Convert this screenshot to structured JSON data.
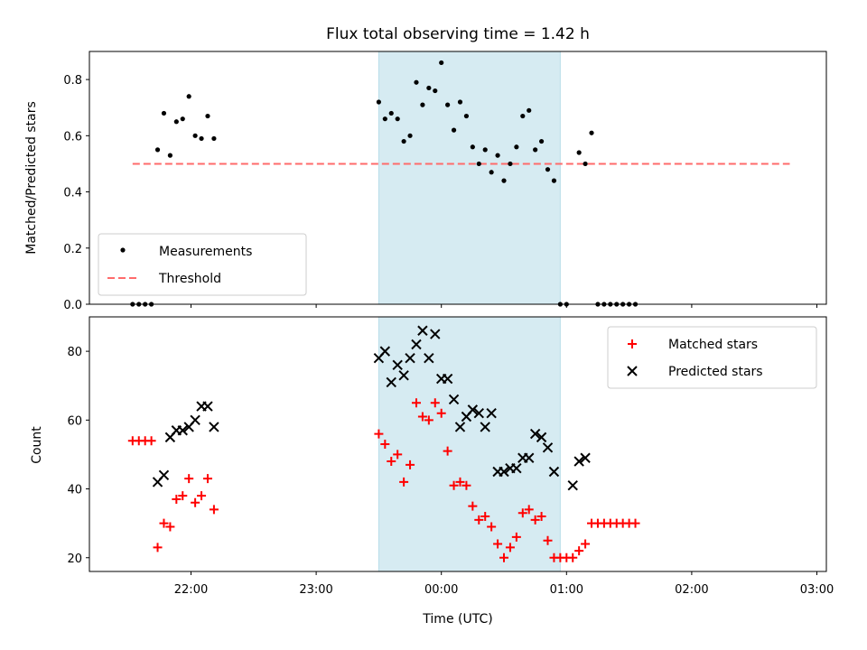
{
  "chart_data": [
    {
      "type": "scatter",
      "panel": "top",
      "title": "Flux total observing time = 1.42 h",
      "ylabel": "Matched/Predicted stars",
      "xlabel": "",
      "x_axis": {
        "type": "time",
        "ticks": [
          "22:00",
          "23:00",
          "00:00",
          "01:00",
          "02:00",
          "03:00"
        ],
        "tick_labels_visible": false
      },
      "ylim": [
        0,
        0.9
      ],
      "yticks": [
        0.0,
        0.2,
        0.4,
        0.6,
        0.8
      ],
      "ytick_labels": [
        "0.0",
        "0.2",
        "0.4",
        "0.6",
        "0.8"
      ],
      "shaded_span": {
        "from": "23:30",
        "to": "00:57",
        "color": "#add8e6"
      },
      "threshold": {
        "value": 0.5,
        "from": "21:32",
        "to": "02:47",
        "color": "#ff6b6b",
        "style": "dashed"
      },
      "legend": {
        "position": "lower left",
        "entries": [
          "Measurements",
          "Threshold"
        ]
      },
      "series": [
        {
          "name": "Measurements",
          "marker": "dot",
          "color": "#000000",
          "points": [
            [
              "21:32",
              0.0
            ],
            [
              "21:35",
              0.0
            ],
            [
              "21:38",
              0.0
            ],
            [
              "21:41",
              0.0
            ],
            [
              "21:44",
              0.55
            ],
            [
              "21:47",
              0.68
            ],
            [
              "21:50",
              0.53
            ],
            [
              "21:53",
              0.65
            ],
            [
              "21:56",
              0.66
            ],
            [
              "21:59",
              0.74
            ],
            [
              "22:02",
              0.6
            ],
            [
              "22:05",
              0.59
            ],
            [
              "22:08",
              0.67
            ],
            [
              "22:11",
              0.59
            ],
            [
              "23:30",
              0.72
            ],
            [
              "23:33",
              0.66
            ],
            [
              "23:36",
              0.68
            ],
            [
              "23:39",
              0.66
            ],
            [
              "23:42",
              0.58
            ],
            [
              "23:45",
              0.6
            ],
            [
              "23:48",
              0.79
            ],
            [
              "23:51",
              0.71
            ],
            [
              "23:54",
              0.77
            ],
            [
              "23:57",
              0.76
            ],
            [
              "00:00",
              0.86
            ],
            [
              "00:03",
              0.71
            ],
            [
              "00:06",
              0.62
            ],
            [
              "00:09",
              0.72
            ],
            [
              "00:12",
              0.67
            ],
            [
              "00:15",
              0.56
            ],
            [
              "00:18",
              0.5
            ],
            [
              "00:21",
              0.55
            ],
            [
              "00:24",
              0.47
            ],
            [
              "00:27",
              0.53
            ],
            [
              "00:30",
              0.44
            ],
            [
              "00:33",
              0.5
            ],
            [
              "00:36",
              0.56
            ],
            [
              "00:39",
              0.67
            ],
            [
              "00:42",
              0.69
            ],
            [
              "00:45",
              0.55
            ],
            [
              "00:48",
              0.58
            ],
            [
              "00:51",
              0.48
            ],
            [
              "00:54",
              0.44
            ],
            [
              "00:57",
              0.0
            ],
            [
              "01:00",
              0.0
            ],
            [
              "01:06",
              0.54
            ],
            [
              "01:09",
              0.5
            ],
            [
              "01:12",
              0.61
            ],
            [
              "01:15",
              0.0
            ],
            [
              "01:18",
              0.0
            ],
            [
              "01:21",
              0.0
            ],
            [
              "01:24",
              0.0
            ],
            [
              "01:27",
              0.0
            ],
            [
              "01:30",
              0.0
            ],
            [
              "01:33",
              0.0
            ]
          ]
        }
      ]
    },
    {
      "type": "scatter",
      "panel": "bottom",
      "title": "",
      "ylabel": "Count",
      "xlabel": "Time (UTC)",
      "x_axis": {
        "type": "time",
        "ticks": [
          "22:00",
          "23:00",
          "00:00",
          "01:00",
          "02:00",
          "03:00"
        ],
        "tick_labels_visible": true
      },
      "ylim": [
        16,
        90
      ],
      "yticks": [
        20,
        40,
        60,
        80
      ],
      "ytick_labels": [
        "20",
        "40",
        "60",
        "80"
      ],
      "shaded_span": {
        "from": "23:30",
        "to": "00:57",
        "color": "#add8e6"
      },
      "legend": {
        "position": "upper right",
        "entries": [
          "Matched stars",
          "Predicted stars"
        ]
      },
      "series": [
        {
          "name": "Matched stars",
          "marker": "plus",
          "color": "#ff0000",
          "points": [
            [
              "21:32",
              54
            ],
            [
              "21:35",
              54
            ],
            [
              "21:38",
              54
            ],
            [
              "21:41",
              54
            ],
            [
              "21:44",
              23
            ],
            [
              "21:47",
              30
            ],
            [
              "21:50",
              29
            ],
            [
              "21:53",
              37
            ],
            [
              "21:56",
              38
            ],
            [
              "21:59",
              43
            ],
            [
              "22:02",
              36
            ],
            [
              "22:05",
              38
            ],
            [
              "22:08",
              43
            ],
            [
              "22:11",
              34
            ],
            [
              "23:30",
              56
            ],
            [
              "23:33",
              53
            ],
            [
              "23:36",
              48
            ],
            [
              "23:39",
              50
            ],
            [
              "23:42",
              42
            ],
            [
              "23:45",
              47
            ],
            [
              "23:48",
              65
            ],
            [
              "23:51",
              61
            ],
            [
              "23:54",
              60
            ],
            [
              "23:57",
              65
            ],
            [
              "00:00",
              62
            ],
            [
              "00:03",
              51
            ],
            [
              "00:06",
              41
            ],
            [
              "00:09",
              42
            ],
            [
              "00:12",
              41
            ],
            [
              "00:15",
              35
            ],
            [
              "00:18",
              31
            ],
            [
              "00:21",
              32
            ],
            [
              "00:24",
              29
            ],
            [
              "00:27",
              24
            ],
            [
              "00:30",
              20
            ],
            [
              "00:33",
              23
            ],
            [
              "00:36",
              26
            ],
            [
              "00:39",
              33
            ],
            [
              "00:42",
              34
            ],
            [
              "00:45",
              31
            ],
            [
              "00:48",
              32
            ],
            [
              "00:51",
              25
            ],
            [
              "00:54",
              20
            ],
            [
              "00:57",
              20
            ],
            [
              "01:00",
              20
            ],
            [
              "01:03",
              20
            ],
            [
              "01:06",
              22
            ],
            [
              "01:09",
              24
            ],
            [
              "01:12",
              30
            ],
            [
              "01:15",
              30
            ],
            [
              "01:18",
              30
            ],
            [
              "01:21",
              30
            ],
            [
              "01:24",
              30
            ],
            [
              "01:27",
              30
            ],
            [
              "01:30",
              30
            ],
            [
              "01:33",
              30
            ]
          ]
        },
        {
          "name": "Predicted stars",
          "marker": "x",
          "color": "#000000",
          "points": [
            [
              "21:44",
              42
            ],
            [
              "21:47",
              44
            ],
            [
              "21:50",
              55
            ],
            [
              "21:53",
              57
            ],
            [
              "21:56",
              57
            ],
            [
              "21:59",
              58
            ],
            [
              "22:02",
              60
            ],
            [
              "22:05",
              64
            ],
            [
              "22:08",
              64
            ],
            [
              "22:11",
              58
            ],
            [
              "23:30",
              78
            ],
            [
              "23:33",
              80
            ],
            [
              "23:36",
              71
            ],
            [
              "23:39",
              76
            ],
            [
              "23:42",
              73
            ],
            [
              "23:45",
              78
            ],
            [
              "23:48",
              82
            ],
            [
              "23:51",
              86
            ],
            [
              "23:54",
              78
            ],
            [
              "23:57",
              85
            ],
            [
              "00:00",
              72
            ],
            [
              "00:03",
              72
            ],
            [
              "00:06",
              66
            ],
            [
              "00:09",
              58
            ],
            [
              "00:12",
              61
            ],
            [
              "00:15",
              63
            ],
            [
              "00:18",
              62
            ],
            [
              "00:21",
              58
            ],
            [
              "00:24",
              62
            ],
            [
              "00:27",
              45
            ],
            [
              "00:30",
              45
            ],
            [
              "00:33",
              46
            ],
            [
              "00:36",
              46
            ],
            [
              "00:39",
              49
            ],
            [
              "00:42",
              49
            ],
            [
              "00:45",
              56
            ],
            [
              "00:48",
              55
            ],
            [
              "00:51",
              52
            ],
            [
              "00:54",
              45
            ],
            [
              "01:03",
              41
            ],
            [
              "01:06",
              48
            ],
            [
              "01:09",
              49
            ]
          ]
        }
      ]
    }
  ]
}
